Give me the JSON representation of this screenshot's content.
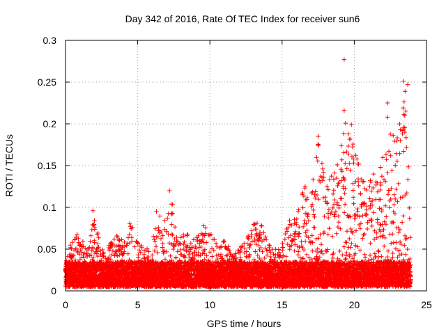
{
  "chart_data": {
    "type": "scatter",
    "title": "Day 342 of 2016, Rate Of TEC Index for receiver sun6",
    "xlabel": "GPS time / hours",
    "ylabel": "ROTI / TECUs",
    "xlim": [
      0,
      25
    ],
    "ylim": [
      0,
      0.3
    ],
    "xticks": [
      0,
      5,
      10,
      15,
      20,
      25
    ],
    "yticks": [
      0,
      0.05,
      0.1,
      0.15,
      0.2,
      0.25,
      0.3
    ],
    "xtick_labels": [
      "0",
      "5",
      "10",
      "15",
      "20",
      "25"
    ],
    "ytick_labels": [
      "0",
      "0.05",
      "0.1",
      "0.15",
      "0.2",
      "0.25",
      "0.3"
    ],
    "grid": true,
    "marker": "+",
    "color": "#ff0000",
    "x_data_range": [
      0,
      23.9
    ],
    "notable_points": [
      {
        "x": 19.3,
        "y": 0.277
      },
      {
        "x": 19.3,
        "y": 0.216
      },
      {
        "x": 23.4,
        "y": 0.251
      },
      {
        "x": 23.7,
        "y": 0.247
      },
      {
        "x": 22.3,
        "y": 0.225
      },
      {
        "x": 22.3,
        "y": 0.208
      },
      {
        "x": 19.8,
        "y": 0.199
      },
      {
        "x": 17.5,
        "y": 0.185
      },
      {
        "x": 23.5,
        "y": 0.19
      },
      {
        "x": 1.9,
        "y": 0.096
      },
      {
        "x": 7.2,
        "y": 0.12
      },
      {
        "x": 6.3,
        "y": 0.095
      }
    ],
    "envelope": [
      {
        "x": 0.0,
        "y": 0.04
      },
      {
        "x": 0.5,
        "y": 0.065
      },
      {
        "x": 1.0,
        "y": 0.07
      },
      {
        "x": 1.5,
        "y": 0.05
      },
      {
        "x": 2.0,
        "y": 0.096
      },
      {
        "x": 2.5,
        "y": 0.05
      },
      {
        "x": 3.0,
        "y": 0.055
      },
      {
        "x": 3.5,
        "y": 0.07
      },
      {
        "x": 4.0,
        "y": 0.06
      },
      {
        "x": 4.5,
        "y": 0.085
      },
      {
        "x": 5.0,
        "y": 0.06
      },
      {
        "x": 5.5,
        "y": 0.05
      },
      {
        "x": 6.0,
        "y": 0.06
      },
      {
        "x": 6.5,
        "y": 0.095
      },
      {
        "x": 7.0,
        "y": 0.09
      },
      {
        "x": 7.3,
        "y": 0.12
      },
      {
        "x": 7.8,
        "y": 0.065
      },
      {
        "x": 8.5,
        "y": 0.07
      },
      {
        "x": 9.0,
        "y": 0.06
      },
      {
        "x": 9.5,
        "y": 0.082
      },
      {
        "x": 10.0,
        "y": 0.07
      },
      {
        "x": 10.5,
        "y": 0.06
      },
      {
        "x": 11.0,
        "y": 0.06
      },
      {
        "x": 11.5,
        "y": 0.05
      },
      {
        "x": 12.0,
        "y": 0.05
      },
      {
        "x": 12.5,
        "y": 0.06
      },
      {
        "x": 13.0,
        "y": 0.085
      },
      {
        "x": 13.5,
        "y": 0.084
      },
      {
        "x": 14.0,
        "y": 0.06
      },
      {
        "x": 14.5,
        "y": 0.05
      },
      {
        "x": 15.0,
        "y": 0.06
      },
      {
        "x": 15.5,
        "y": 0.09
      },
      {
        "x": 16.0,
        "y": 0.09
      },
      {
        "x": 16.5,
        "y": 0.14
      },
      {
        "x": 17.0,
        "y": 0.12
      },
      {
        "x": 17.5,
        "y": 0.185
      },
      {
        "x": 18.0,
        "y": 0.13
      },
      {
        "x": 18.5,
        "y": 0.14
      },
      {
        "x": 19.0,
        "y": 0.17
      },
      {
        "x": 19.5,
        "y": 0.21
      },
      {
        "x": 20.0,
        "y": 0.17
      },
      {
        "x": 20.5,
        "y": 0.14
      },
      {
        "x": 21.0,
        "y": 0.13
      },
      {
        "x": 21.5,
        "y": 0.15
      },
      {
        "x": 22.0,
        "y": 0.16
      },
      {
        "x": 22.5,
        "y": 0.2
      },
      {
        "x": 23.0,
        "y": 0.19
      },
      {
        "x": 23.5,
        "y": 0.25
      },
      {
        "x": 23.9,
        "y": 0.09
      }
    ],
    "baseline_y": [
      0.005,
      0.035
    ]
  }
}
